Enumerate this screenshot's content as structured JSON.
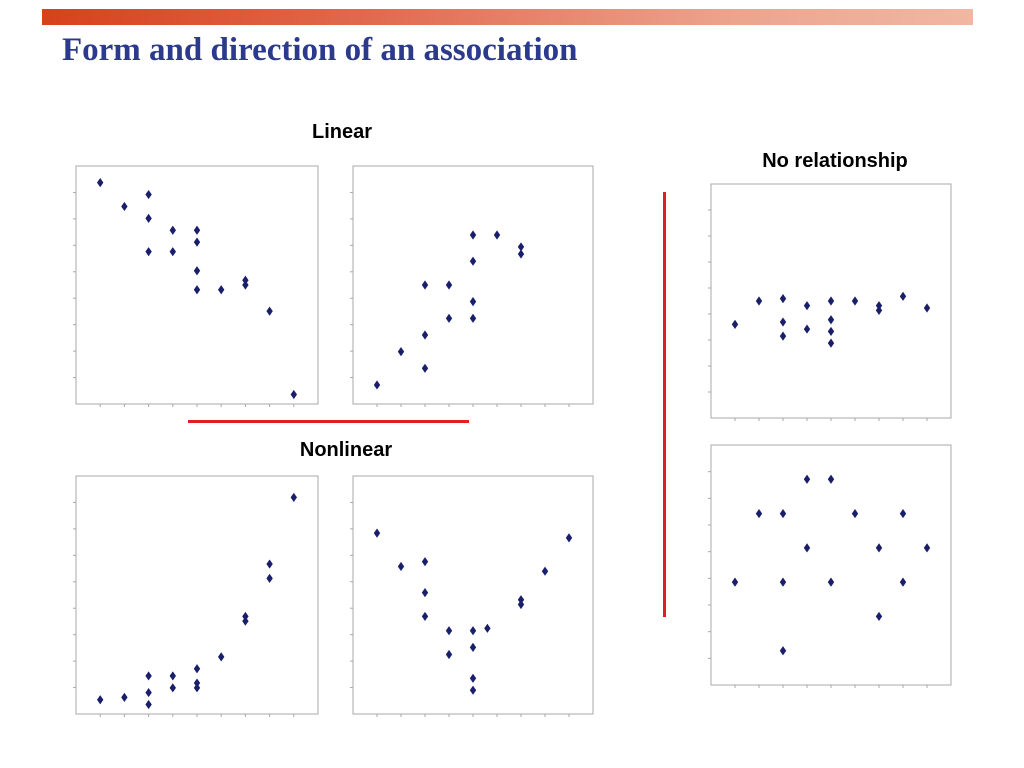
{
  "slide": {
    "title": "Form and direction of an association",
    "accent_color": "#2b3a8c",
    "bar_color": "#d7411c",
    "divider_color": "#e02020",
    "marker_color": "#1a1f6b"
  },
  "headings": {
    "linear": "Linear",
    "nonlinear": "Nonlinear",
    "no_relationship": "No relationship"
  },
  "chart_data": [
    {
      "id": "linear-negative",
      "type": "scatter",
      "xlim": [
        0,
        10
      ],
      "ylim": [
        0,
        10
      ],
      "grid": false,
      "points": [
        [
          1,
          9.3
        ],
        [
          2,
          8.3
        ],
        [
          3,
          8.8
        ],
        [
          3,
          7.8
        ],
        [
          3,
          6.4
        ],
        [
          4,
          7.3
        ],
        [
          4,
          6.4
        ],
        [
          5,
          7.3
        ],
        [
          5,
          6.8
        ],
        [
          5,
          5.6
        ],
        [
          5,
          4.8
        ],
        [
          6,
          4.8
        ],
        [
          7,
          5.2
        ],
        [
          7,
          5.0
        ],
        [
          8,
          3.9
        ],
        [
          9,
          0.4
        ]
      ]
    },
    {
      "id": "linear-positive",
      "type": "scatter",
      "xlim": [
        0,
        10
      ],
      "ylim": [
        0,
        10
      ],
      "grid": false,
      "points": [
        [
          1,
          0.8
        ],
        [
          2,
          2.2
        ],
        [
          3,
          1.5
        ],
        [
          3,
          2.9
        ],
        [
          3,
          5.0
        ],
        [
          4,
          5.0
        ],
        [
          4,
          3.6
        ],
        [
          5,
          7.1
        ],
        [
          5,
          6.0
        ],
        [
          5,
          4.3
        ],
        [
          5,
          3.6
        ],
        [
          6,
          7.1
        ],
        [
          7,
          6.6
        ],
        [
          7,
          6.3
        ]
      ]
    },
    {
      "id": "nonlinear-exponential",
      "type": "scatter",
      "xlim": [
        0,
        10
      ],
      "ylim": [
        0,
        10
      ],
      "grid": false,
      "points": [
        [
          1,
          0.6
        ],
        [
          2,
          0.7
        ],
        [
          3,
          1.6
        ],
        [
          3,
          0.9
        ],
        [
          3,
          0.4
        ],
        [
          4,
          1.6
        ],
        [
          4,
          1.1
        ],
        [
          5,
          1.9
        ],
        [
          5,
          1.3
        ],
        [
          5,
          1.1
        ],
        [
          6,
          2.4
        ],
        [
          7,
          4.1
        ],
        [
          7,
          3.9
        ],
        [
          8,
          6.3
        ],
        [
          8,
          5.7
        ],
        [
          9,
          9.1
        ]
      ]
    },
    {
      "id": "nonlinear-u-shape",
      "type": "scatter",
      "xlim": [
        0,
        10
      ],
      "ylim": [
        0,
        10
      ],
      "grid": false,
      "points": [
        [
          1,
          7.6
        ],
        [
          2,
          6.2
        ],
        [
          3,
          6.4
        ],
        [
          3,
          5.1
        ],
        [
          3,
          4.1
        ],
        [
          4,
          3.5
        ],
        [
          4,
          2.5
        ],
        [
          5,
          3.5
        ],
        [
          5,
          2.8
        ],
        [
          5,
          1.5
        ],
        [
          5,
          1.0
        ],
        [
          5.6,
          3.6
        ],
        [
          7,
          4.8
        ],
        [
          7,
          4.6
        ],
        [
          8,
          6.0
        ],
        [
          9,
          7.4
        ]
      ]
    },
    {
      "id": "no-relationship-flat",
      "type": "scatter",
      "xlim": [
        0,
        10
      ],
      "ylim": [
        0,
        10
      ],
      "grid": false,
      "points": [
        [
          1,
          4.0
        ],
        [
          2,
          5.0
        ],
        [
          3,
          5.1
        ],
        [
          3,
          4.1
        ],
        [
          3,
          3.5
        ],
        [
          4,
          4.8
        ],
        [
          4,
          3.8
        ],
        [
          5,
          5.0
        ],
        [
          5,
          4.2
        ],
        [
          5,
          3.7
        ],
        [
          5,
          3.2
        ],
        [
          6,
          5.0
        ],
        [
          7,
          4.8
        ],
        [
          7,
          4.6
        ],
        [
          8,
          5.2
        ],
        [
          9,
          4.7
        ]
      ]
    },
    {
      "id": "no-relationship-scatter",
      "type": "scatter",
      "xlim": [
        0,
        10
      ],
      "ylim": [
        0,
        7
      ],
      "grid": false,
      "points": [
        [
          1,
          3
        ],
        [
          2,
          5
        ],
        [
          3,
          5
        ],
        [
          3,
          3
        ],
        [
          3,
          1
        ],
        [
          4,
          6
        ],
        [
          4,
          4
        ],
        [
          5,
          6
        ],
        [
          5,
          3
        ],
        [
          6,
          5
        ],
        [
          7,
          4
        ],
        [
          7,
          2
        ],
        [
          8,
          5
        ],
        [
          8,
          3
        ],
        [
          9,
          4
        ]
      ]
    }
  ]
}
